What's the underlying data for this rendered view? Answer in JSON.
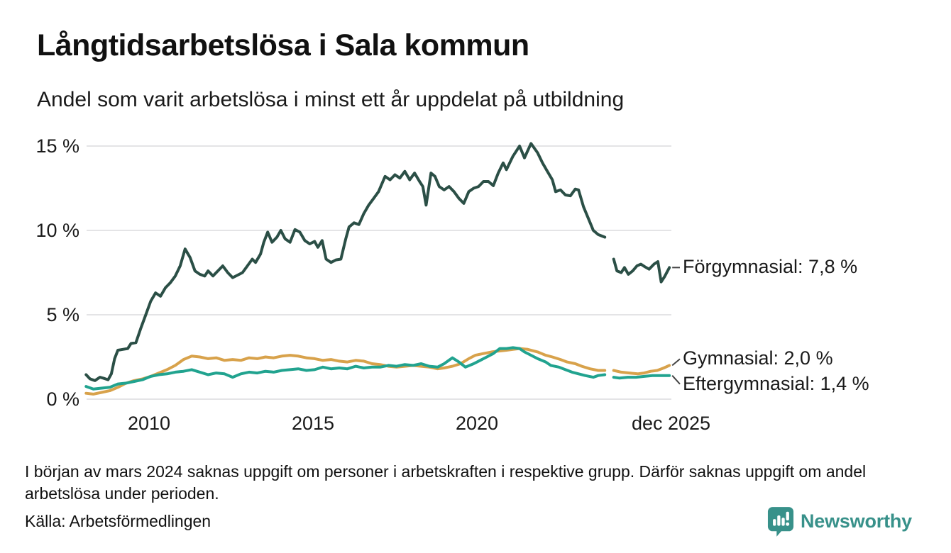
{
  "header": {
    "title": "Långtidsarbetslösa i Sala kommun",
    "subtitle": "Andel som varit arbetslösa i minst ett år uppdelat på utbildning"
  },
  "footer": {
    "footnote": "I början av mars 2024 saknas uppgift om personer i arbetskraften i respektive grupp. Därför saknas uppgift om andel arbetslösa under perioden.",
    "source": "Källa: Arbetsförmedlingen",
    "logo_text": "Newsworthy",
    "logo_icon": "bar-chart-speech-bubble-icon",
    "logo_color": "#38918a"
  },
  "colors": {
    "grid": "#e4e4e6",
    "connector": "#444444",
    "text": "#1a1a1a"
  },
  "chart_data": {
    "type": "line",
    "title": "Långtidsarbetslösa i Sala kommun",
    "subtitle": "Andel som varit arbetslösa i minst ett år uppdelat på utbildning",
    "unit": "%",
    "ylim": [
      0,
      15
    ],
    "xlim": [
      2008,
      2026.1
    ],
    "grid": true,
    "legend_position": "end-of-line-labels",
    "gap": "data missing around early 2024 (see footnote)",
    "y_ticks": [
      {
        "label": "0 %",
        "value": 0
      },
      {
        "label": "5 %",
        "value": 5
      },
      {
        "label": "10 %",
        "value": 10
      },
      {
        "label": "15 %",
        "value": 15
      }
    ],
    "x_ticks": [
      {
        "label": "2010",
        "t": 2010
      },
      {
        "label": "2015",
        "t": 2015
      },
      {
        "label": "2020",
        "t": 2020
      },
      {
        "label": "dec 2025",
        "t": 2025.92
      }
    ],
    "series": [
      {
        "name": "Förgymnasial",
        "end_label": "Förgymnasial: 7,8 %",
        "end_value": 7.8,
        "color": "#2b4f46",
        "label_offset_y": 0,
        "points": [
          [
            2008.08,
            1.45
          ],
          [
            2008.2,
            1.2
          ],
          [
            2008.35,
            1.1
          ],
          [
            2008.5,
            1.3
          ],
          [
            2008.6,
            1.25
          ],
          [
            2008.75,
            1.15
          ],
          [
            2008.85,
            1.5
          ],
          [
            2008.95,
            2.4
          ],
          [
            2009.05,
            2.9
          ],
          [
            2009.2,
            2.95
          ],
          [
            2009.35,
            3.0
          ],
          [
            2009.45,
            3.3
          ],
          [
            2009.6,
            3.35
          ],
          [
            2009.75,
            4.2
          ],
          [
            2009.9,
            5.0
          ],
          [
            2010.05,
            5.8
          ],
          [
            2010.2,
            6.3
          ],
          [
            2010.35,
            6.1
          ],
          [
            2010.5,
            6.6
          ],
          [
            2010.65,
            6.9
          ],
          [
            2010.8,
            7.3
          ],
          [
            2010.95,
            7.9
          ],
          [
            2011.1,
            8.9
          ],
          [
            2011.25,
            8.4
          ],
          [
            2011.4,
            7.6
          ],
          [
            2011.55,
            7.4
          ],
          [
            2011.7,
            7.3
          ],
          [
            2011.8,
            7.6
          ],
          [
            2011.95,
            7.3
          ],
          [
            2012.1,
            7.6
          ],
          [
            2012.25,
            7.9
          ],
          [
            2012.4,
            7.5
          ],
          [
            2012.55,
            7.2
          ],
          [
            2012.7,
            7.35
          ],
          [
            2012.85,
            7.5
          ],
          [
            2013.0,
            7.9
          ],
          [
            2013.15,
            8.3
          ],
          [
            2013.25,
            8.1
          ],
          [
            2013.4,
            8.6
          ],
          [
            2013.5,
            9.3
          ],
          [
            2013.62,
            9.9
          ],
          [
            2013.75,
            9.3
          ],
          [
            2013.9,
            9.6
          ],
          [
            2014.02,
            10.0
          ],
          [
            2014.15,
            9.5
          ],
          [
            2014.3,
            9.3
          ],
          [
            2014.45,
            10.05
          ],
          [
            2014.6,
            9.9
          ],
          [
            2014.75,
            9.4
          ],
          [
            2014.9,
            9.2
          ],
          [
            2015.05,
            9.35
          ],
          [
            2015.15,
            9.0
          ],
          [
            2015.28,
            9.4
          ],
          [
            2015.4,
            8.3
          ],
          [
            2015.55,
            8.1
          ],
          [
            2015.7,
            8.25
          ],
          [
            2015.85,
            8.3
          ],
          [
            2016.0,
            9.5
          ],
          [
            2016.1,
            10.2
          ],
          [
            2016.25,
            10.45
          ],
          [
            2016.4,
            10.35
          ],
          [
            2016.55,
            11.0
          ],
          [
            2016.7,
            11.5
          ],
          [
            2016.85,
            11.9
          ],
          [
            2017.0,
            12.3
          ],
          [
            2017.2,
            13.2
          ],
          [
            2017.35,
            13.0
          ],
          [
            2017.5,
            13.3
          ],
          [
            2017.65,
            13.1
          ],
          [
            2017.8,
            13.5
          ],
          [
            2017.95,
            13.0
          ],
          [
            2018.1,
            13.4
          ],
          [
            2018.25,
            12.9
          ],
          [
            2018.35,
            12.6
          ],
          [
            2018.45,
            11.5
          ],
          [
            2018.6,
            13.4
          ],
          [
            2018.72,
            13.2
          ],
          [
            2018.85,
            12.6
          ],
          [
            2019.0,
            12.4
          ],
          [
            2019.15,
            12.6
          ],
          [
            2019.3,
            12.3
          ],
          [
            2019.45,
            11.9
          ],
          [
            2019.6,
            11.6
          ],
          [
            2019.75,
            12.3
          ],
          [
            2019.9,
            12.5
          ],
          [
            2020.05,
            12.6
          ],
          [
            2020.2,
            12.9
          ],
          [
            2020.35,
            12.9
          ],
          [
            2020.5,
            12.65
          ],
          [
            2020.65,
            13.4
          ],
          [
            2020.8,
            14.0
          ],
          [
            2020.9,
            13.6
          ],
          [
            2021.1,
            14.4
          ],
          [
            2021.3,
            15.0
          ],
          [
            2021.45,
            14.3
          ],
          [
            2021.65,
            15.15
          ],
          [
            2021.85,
            14.6
          ],
          [
            2022.0,
            14.0
          ],
          [
            2022.15,
            13.5
          ],
          [
            2022.3,
            13.0
          ],
          [
            2022.4,
            12.3
          ],
          [
            2022.55,
            12.4
          ],
          [
            2022.7,
            12.1
          ],
          [
            2022.85,
            12.05
          ],
          [
            2023.0,
            12.45
          ],
          [
            2023.1,
            12.4
          ],
          [
            2023.25,
            11.4
          ],
          [
            2023.4,
            10.7
          ],
          [
            2023.55,
            10.0
          ],
          [
            2023.7,
            9.75
          ],
          [
            2023.9,
            9.6
          ],
          null,
          [
            2024.17,
            8.3
          ],
          [
            2024.27,
            7.6
          ],
          [
            2024.4,
            7.5
          ],
          [
            2024.5,
            7.8
          ],
          [
            2024.62,
            7.4
          ],
          [
            2024.75,
            7.6
          ],
          [
            2024.88,
            7.9
          ],
          [
            2025.0,
            8.0
          ],
          [
            2025.12,
            7.85
          ],
          [
            2025.25,
            7.7
          ],
          [
            2025.4,
            8.0
          ],
          [
            2025.52,
            8.15
          ],
          [
            2025.62,
            6.95
          ],
          [
            2025.72,
            7.25
          ],
          [
            2025.87,
            7.8
          ]
        ]
      },
      {
        "name": "Gymnasial",
        "end_label": "Gymnasial: 2,0 %",
        "end_value": 2.0,
        "color": "#d8a24b",
        "label_offset_y": -9,
        "points": [
          [
            2008.08,
            0.35
          ],
          [
            2008.3,
            0.3
          ],
          [
            2008.55,
            0.4
          ],
          [
            2008.8,
            0.5
          ],
          [
            2009.05,
            0.7
          ],
          [
            2009.3,
            0.95
          ],
          [
            2009.55,
            1.1
          ],
          [
            2009.8,
            1.2
          ],
          [
            2010.05,
            1.35
          ],
          [
            2010.3,
            1.55
          ],
          [
            2010.55,
            1.75
          ],
          [
            2010.8,
            2.0
          ],
          [
            2011.05,
            2.35
          ],
          [
            2011.3,
            2.55
          ],
          [
            2011.55,
            2.5
          ],
          [
            2011.8,
            2.4
          ],
          [
            2012.05,
            2.45
          ],
          [
            2012.3,
            2.3
          ],
          [
            2012.55,
            2.35
          ],
          [
            2012.8,
            2.3
          ],
          [
            2013.05,
            2.45
          ],
          [
            2013.3,
            2.4
          ],
          [
            2013.55,
            2.5
          ],
          [
            2013.8,
            2.45
          ],
          [
            2014.05,
            2.55
          ],
          [
            2014.3,
            2.6
          ],
          [
            2014.55,
            2.55
          ],
          [
            2014.8,
            2.45
          ],
          [
            2015.05,
            2.4
          ],
          [
            2015.3,
            2.3
          ],
          [
            2015.55,
            2.35
          ],
          [
            2015.8,
            2.25
          ],
          [
            2016.05,
            2.2
          ],
          [
            2016.3,
            2.3
          ],
          [
            2016.55,
            2.25
          ],
          [
            2016.8,
            2.1
          ],
          [
            2017.05,
            2.05
          ],
          [
            2017.3,
            1.95
          ],
          [
            2017.55,
            1.9
          ],
          [
            2017.8,
            1.95
          ],
          [
            2018.05,
            2.0
          ],
          [
            2018.3,
            1.95
          ],
          [
            2018.55,
            1.9
          ],
          [
            2018.8,
            1.8
          ],
          [
            2019.0,
            1.85
          ],
          [
            2019.25,
            1.95
          ],
          [
            2019.5,
            2.1
          ],
          [
            2019.75,
            2.4
          ],
          [
            2019.95,
            2.6
          ],
          [
            2020.2,
            2.7
          ],
          [
            2020.45,
            2.8
          ],
          [
            2020.65,
            2.85
          ],
          [
            2020.9,
            2.9
          ],
          [
            2021.1,
            2.95
          ],
          [
            2021.3,
            3.0
          ],
          [
            2021.55,
            2.95
          ],
          [
            2021.85,
            2.8
          ],
          [
            2022.1,
            2.6
          ],
          [
            2022.3,
            2.5
          ],
          [
            2022.55,
            2.35
          ],
          [
            2022.75,
            2.2
          ],
          [
            2023.0,
            2.1
          ],
          [
            2023.2,
            1.95
          ],
          [
            2023.45,
            1.8
          ],
          [
            2023.7,
            1.7
          ],
          [
            2023.9,
            1.7
          ],
          null,
          [
            2024.17,
            1.7
          ],
          [
            2024.4,
            1.6
          ],
          [
            2024.65,
            1.55
          ],
          [
            2024.9,
            1.5
          ],
          [
            2025.1,
            1.55
          ],
          [
            2025.3,
            1.65
          ],
          [
            2025.5,
            1.7
          ],
          [
            2025.7,
            1.85
          ],
          [
            2025.87,
            2.0
          ]
        ]
      },
      {
        "name": "Eftergymnasial",
        "end_label": "Eftergymnasial: 1,4 %",
        "end_value": 1.4,
        "color": "#21a38f",
        "label_offset_y": 12,
        "points": [
          [
            2008.08,
            0.75
          ],
          [
            2008.3,
            0.6
          ],
          [
            2008.55,
            0.65
          ],
          [
            2008.8,
            0.7
          ],
          [
            2009.05,
            0.9
          ],
          [
            2009.3,
            0.95
          ],
          [
            2009.55,
            1.05
          ],
          [
            2009.8,
            1.15
          ],
          [
            2010.05,
            1.35
          ],
          [
            2010.3,
            1.45
          ],
          [
            2010.55,
            1.5
          ],
          [
            2010.8,
            1.6
          ],
          [
            2011.05,
            1.65
          ],
          [
            2011.3,
            1.75
          ],
          [
            2011.55,
            1.6
          ],
          [
            2011.8,
            1.45
          ],
          [
            2012.05,
            1.55
          ],
          [
            2012.3,
            1.5
          ],
          [
            2012.55,
            1.3
          ],
          [
            2012.8,
            1.5
          ],
          [
            2013.05,
            1.6
          ],
          [
            2013.3,
            1.55
          ],
          [
            2013.55,
            1.65
          ],
          [
            2013.8,
            1.6
          ],
          [
            2014.05,
            1.7
          ],
          [
            2014.3,
            1.75
          ],
          [
            2014.55,
            1.8
          ],
          [
            2014.8,
            1.7
          ],
          [
            2015.05,
            1.75
          ],
          [
            2015.3,
            1.9
          ],
          [
            2015.55,
            1.8
          ],
          [
            2015.8,
            1.85
          ],
          [
            2016.05,
            1.8
          ],
          [
            2016.3,
            1.95
          ],
          [
            2016.55,
            1.85
          ],
          [
            2016.8,
            1.9
          ],
          [
            2017.05,
            1.9
          ],
          [
            2017.3,
            2.0
          ],
          [
            2017.55,
            1.95
          ],
          [
            2017.8,
            2.05
          ],
          [
            2018.05,
            2.0
          ],
          [
            2018.3,
            2.1
          ],
          [
            2018.55,
            1.95
          ],
          [
            2018.8,
            1.9
          ],
          [
            2019.0,
            2.1
          ],
          [
            2019.25,
            2.45
          ],
          [
            2019.45,
            2.2
          ],
          [
            2019.65,
            1.9
          ],
          [
            2019.9,
            2.1
          ],
          [
            2020.1,
            2.3
          ],
          [
            2020.3,
            2.5
          ],
          [
            2020.5,
            2.7
          ],
          [
            2020.7,
            3.0
          ],
          [
            2020.9,
            3.0
          ],
          [
            2021.1,
            3.05
          ],
          [
            2021.3,
            3.0
          ],
          [
            2021.45,
            2.8
          ],
          [
            2021.6,
            2.65
          ],
          [
            2021.85,
            2.4
          ],
          [
            2022.1,
            2.2
          ],
          [
            2022.25,
            2.0
          ],
          [
            2022.5,
            1.9
          ],
          [
            2022.7,
            1.75
          ],
          [
            2022.9,
            1.6
          ],
          [
            2023.1,
            1.5
          ],
          [
            2023.3,
            1.4
          ],
          [
            2023.55,
            1.3
          ],
          [
            2023.7,
            1.4
          ],
          [
            2023.9,
            1.45
          ],
          null,
          [
            2024.17,
            1.3
          ],
          [
            2024.35,
            1.25
          ],
          [
            2024.6,
            1.3
          ],
          [
            2024.85,
            1.3
          ],
          [
            2025.1,
            1.35
          ],
          [
            2025.35,
            1.4
          ],
          [
            2025.6,
            1.4
          ],
          [
            2025.87,
            1.4
          ]
        ]
      }
    ]
  }
}
